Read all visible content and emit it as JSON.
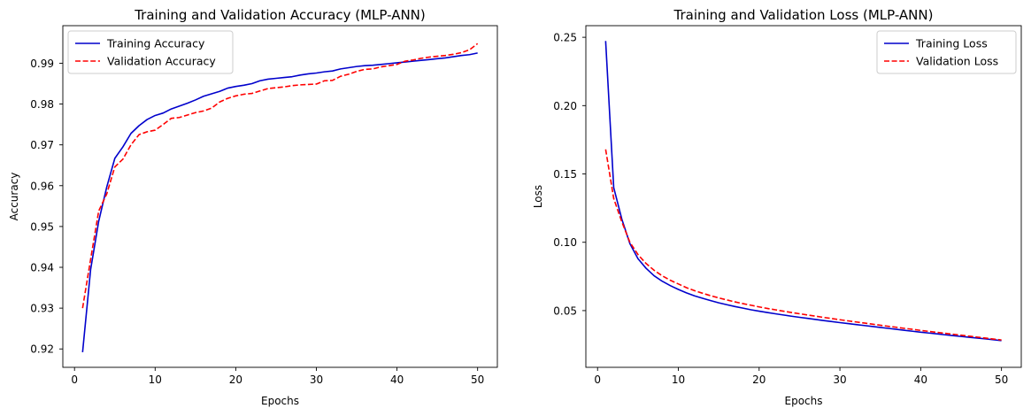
{
  "chart_data": [
    {
      "type": "line",
      "title": "Training and Validation Accuracy (MLP-ANN)",
      "xlabel": "Epochs",
      "ylabel": "Accuracy",
      "xlim": [
        -1.45,
        52.45
      ],
      "ylim": [
        0.9155,
        0.9992
      ],
      "xticks": [
        0,
        10,
        20,
        30,
        40,
        50
      ],
      "yticks": [
        0.92,
        0.93,
        0.94,
        0.95,
        0.96,
        0.97,
        0.98,
        0.99
      ],
      "ytick_labels": [
        "0.92",
        "0.93",
        "0.94",
        "0.95",
        "0.96",
        "0.97",
        "0.98",
        "0.99"
      ],
      "grid": false,
      "legend_position": "upper-left",
      "series": [
        {
          "name": "Training Accuracy",
          "color": "#0000cc",
          "dash": "solid",
          "x": [
            1,
            2,
            3,
            4,
            5,
            6,
            7,
            8,
            9,
            10,
            11,
            12,
            13,
            14,
            15,
            16,
            17,
            18,
            19,
            20,
            21,
            22,
            23,
            24,
            25,
            26,
            27,
            28,
            29,
            30,
            31,
            32,
            33,
            34,
            35,
            36,
            37,
            38,
            39,
            40,
            41,
            42,
            43,
            44,
            45,
            46,
            47,
            48,
            49,
            50
          ],
          "y": [
            0.9192,
            0.9395,
            0.9513,
            0.9597,
            0.9667,
            0.9695,
            0.9728,
            0.9747,
            0.9762,
            0.9772,
            0.9778,
            0.9788,
            0.9795,
            0.9802,
            0.981,
            0.9819,
            0.9825,
            0.9831,
            0.9839,
            0.9843,
            0.9846,
            0.985,
            0.9857,
            0.9861,
            0.9863,
            0.9865,
            0.9867,
            0.9871,
            0.9874,
            0.9876,
            0.9879,
            0.9881,
            0.9886,
            0.9889,
            0.9892,
            0.9894,
            0.9895,
            0.9897,
            0.9899,
            0.9901,
            0.9903,
            0.9905,
            0.9907,
            0.9909,
            0.9911,
            0.9913,
            0.9916,
            0.9919,
            0.9921,
            0.9925
          ]
        },
        {
          "name": "Validation Accuracy",
          "color": "#ff0000",
          "dash": "dashed",
          "x": [
            1,
            2,
            3,
            4,
            5,
            6,
            7,
            8,
            9,
            10,
            11,
            12,
            13,
            14,
            15,
            16,
            17,
            18,
            19,
            20,
            21,
            22,
            23,
            24,
            25,
            26,
            27,
            28,
            29,
            30,
            31,
            32,
            33,
            34,
            35,
            36,
            37,
            38,
            39,
            40,
            41,
            42,
            43,
            44,
            45,
            46,
            47,
            48,
            49,
            50
          ],
          "y": [
            0.93,
            0.942,
            0.9538,
            0.958,
            0.9646,
            0.9665,
            0.97,
            0.9725,
            0.9732,
            0.9736,
            0.975,
            0.9765,
            0.9767,
            0.9773,
            0.9779,
            0.9783,
            0.979,
            0.9805,
            0.9814,
            0.982,
            0.9824,
            0.9826,
            0.9832,
            0.9838,
            0.984,
            0.9842,
            0.9845,
            0.9847,
            0.9848,
            0.9849,
            0.9857,
            0.9858,
            0.9868,
            0.9873,
            0.988,
            0.9885,
            0.9886,
            0.9891,
            0.9894,
            0.9897,
            0.9905,
            0.9908,
            0.9912,
            0.9915,
            0.9917,
            0.9919,
            0.9922,
            0.9926,
            0.9933,
            0.9948
          ]
        }
      ]
    },
    {
      "type": "line",
      "title": "Training and Validation Loss (MLP-ANN)",
      "xlabel": "Epochs",
      "ylabel": "Loss",
      "xlim": [
        -1.45,
        52.45
      ],
      "ylim": [
        0.0085,
        0.2585
      ],
      "xticks": [
        0,
        10,
        20,
        30,
        40,
        50
      ],
      "yticks": [
        0.05,
        0.1,
        0.15,
        0.2,
        0.25
      ],
      "ytick_labels": [
        "0.05",
        "0.10",
        "0.15",
        "0.20",
        "0.25"
      ],
      "grid": false,
      "legend_position": "upper-right",
      "series": [
        {
          "name": "Training Loss",
          "color": "#0000cc",
          "dash": "solid",
          "x": [
            1,
            2,
            3,
            4,
            5,
            6,
            7,
            8,
            9,
            10,
            11,
            12,
            13,
            14,
            15,
            16,
            17,
            18,
            19,
            20,
            21,
            22,
            23,
            24,
            25,
            26,
            27,
            28,
            29,
            30,
            31,
            32,
            33,
            34,
            35,
            36,
            37,
            38,
            39,
            40,
            41,
            42,
            43,
            44,
            45,
            46,
            47,
            48,
            49,
            50
          ],
          "y": [
            0.2473,
            0.14,
            0.117,
            0.099,
            0.088,
            0.081,
            0.0755,
            0.0715,
            0.0683,
            0.0655,
            0.063,
            0.0608,
            0.059,
            0.0573,
            0.0557,
            0.0543,
            0.053,
            0.0518,
            0.0506,
            0.0496,
            0.0486,
            0.0477,
            0.0468,
            0.0459,
            0.0451,
            0.0443,
            0.0435,
            0.0427,
            0.042,
            0.0412,
            0.0405,
            0.0398,
            0.0391,
            0.0384,
            0.0377,
            0.037,
            0.0363,
            0.0356,
            0.0349,
            0.0342,
            0.0336,
            0.033,
            0.0323,
            0.0317,
            0.0311,
            0.0305,
            0.0299,
            0.0293,
            0.0287,
            0.028
          ]
        },
        {
          "name": "Validation Loss",
          "color": "#ff0000",
          "dash": "dashed",
          "x": [
            1,
            2,
            3,
            4,
            5,
            6,
            7,
            8,
            9,
            10,
            11,
            12,
            13,
            14,
            15,
            16,
            17,
            18,
            19,
            20,
            21,
            22,
            23,
            24,
            25,
            26,
            27,
            28,
            29,
            30,
            31,
            32,
            33,
            34,
            35,
            36,
            37,
            38,
            39,
            40,
            41,
            42,
            43,
            44,
            45,
            46,
            47,
            48,
            49,
            50
          ],
          "y": [
            0.168,
            0.132,
            0.115,
            0.1,
            0.091,
            0.0845,
            0.0795,
            0.0755,
            0.0722,
            0.0695,
            0.0668,
            0.0646,
            0.0627,
            0.0609,
            0.0593,
            0.0578,
            0.0564,
            0.0551,
            0.0539,
            0.0527,
            0.0516,
            0.0506,
            0.0496,
            0.0486,
            0.0477,
            0.0468,
            0.0459,
            0.045,
            0.0442,
            0.0433,
            0.0425,
            0.0417,
            0.0409,
            0.0401,
            0.0393,
            0.0385,
            0.0378,
            0.037,
            0.0363,
            0.0355,
            0.0348,
            0.0341,
            0.0334,
            0.0327,
            0.032,
            0.0313,
            0.0306,
            0.0299,
            0.0292,
            0.0285
          ]
        }
      ]
    }
  ]
}
